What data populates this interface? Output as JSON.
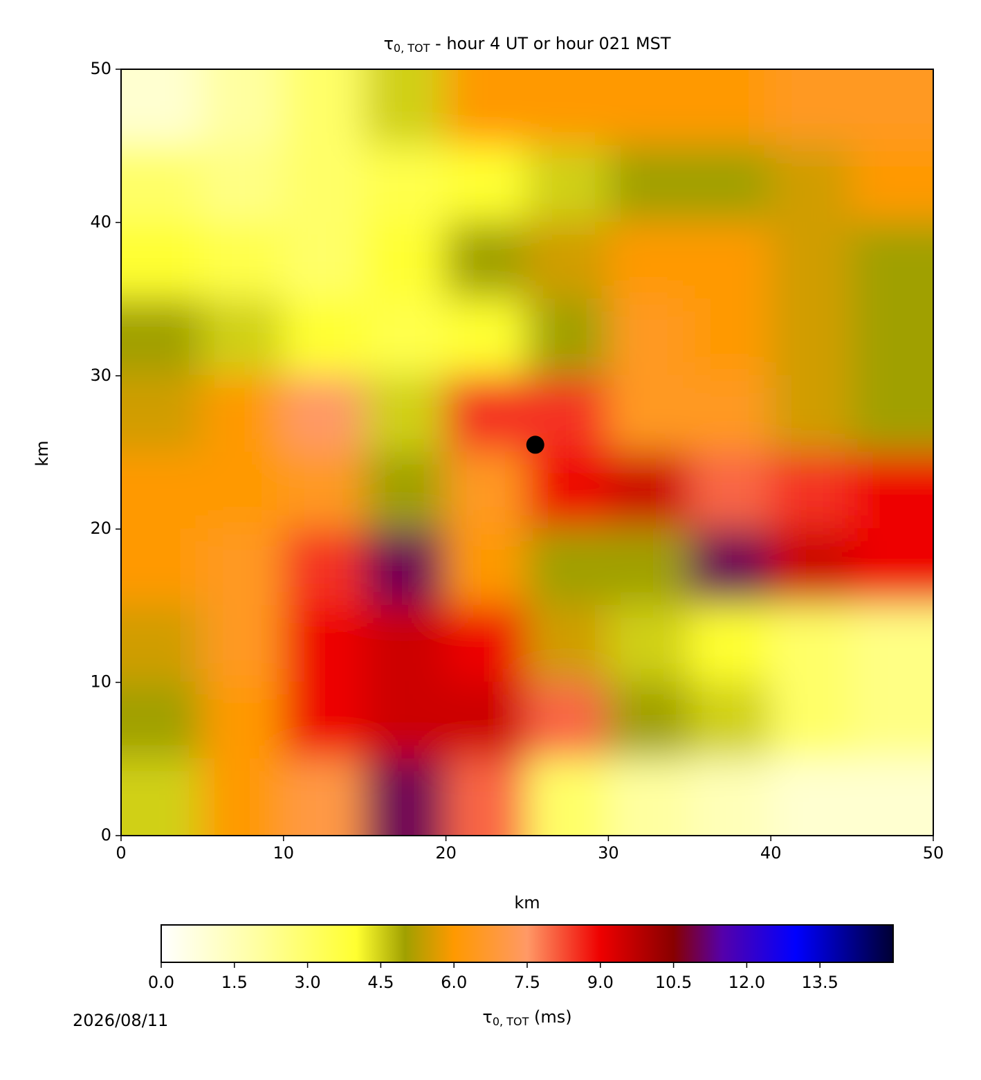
{
  "chart_data": {
    "type": "contourf",
    "title_symbol": "τ",
    "title_subscript": "0, TOT",
    "title_rest": " - hour 4 UT or hour 021 MST",
    "xlabel": "km",
    "ylabel": "km",
    "x": [
      2.5,
      7.5,
      12.5,
      17.5,
      22.5,
      27.5,
      32.5,
      37.5,
      42.5,
      47.5
    ],
    "y": [
      47.5,
      42.5,
      37.5,
      32.5,
      27.5,
      22.5,
      17.5,
      12.5,
      7.5,
      2.5
    ],
    "z": [
      [
        1,
        2,
        3,
        4.5,
        6,
        6,
        6,
        6,
        6.5,
        6.5
      ],
      [
        3,
        2.5,
        3,
        3.5,
        4,
        4.5,
        5,
        5,
        5.5,
        6
      ],
      [
        4,
        3.5,
        3,
        4,
        5,
        5.5,
        6,
        6,
        5.5,
        5
      ],
      [
        5,
        4.5,
        4,
        3.5,
        4,
        5,
        6.5,
        6,
        5.5,
        5
      ],
      [
        5.5,
        6,
        7.5,
        4.5,
        8.5,
        8.5,
        6.5,
        6.5,
        5.5,
        5
      ],
      [
        6,
        6,
        6.5,
        5,
        6.5,
        9,
        9.5,
        8,
        8.5,
        9
      ],
      [
        6,
        6.5,
        8.5,
        11,
        6,
        5,
        5,
        11,
        9.5,
        9
      ],
      [
        5.5,
        6.5,
        9,
        9.5,
        9,
        5.5,
        4.5,
        4,
        3,
        2.5
      ],
      [
        5,
        6,
        9,
        9.5,
        9.5,
        8,
        5,
        4.5,
        3,
        2.5
      ],
      [
        4.5,
        6,
        7,
        11,
        8,
        3,
        2,
        1.5,
        1,
        1
      ]
    ],
    "xlim": [
      0,
      50
    ],
    "ylim": [
      0,
      50
    ],
    "xticks": [
      0,
      10,
      20,
      30,
      40,
      50
    ],
    "yticks": [
      0,
      10,
      20,
      30,
      40,
      50
    ],
    "marker": {
      "x": 25.5,
      "y": 25.5,
      "color": "#000000"
    },
    "colormap": [
      [
        0,
        "#ffffff"
      ],
      [
        2,
        "#ffffa0"
      ],
      [
        4,
        "#ffff30"
      ],
      [
        5,
        "#a0a000"
      ],
      [
        6,
        "#ff9900"
      ],
      [
        7.5,
        "#ff9966"
      ],
      [
        9,
        "#ee0000"
      ],
      [
        10.5,
        "#880000"
      ],
      [
        11.5,
        "#5500aa"
      ],
      [
        13,
        "#0000ff"
      ],
      [
        15,
        "#000033"
      ]
    ],
    "clim": [
      0,
      15
    ],
    "colorbar_ticks": [
      {
        "value": 0,
        "label": "0.0"
      },
      1.5,
      {
        "value": 3,
        "label": "3.0"
      },
      4.5,
      {
        "value": 6,
        "label": "6.0"
      },
      7.5,
      {
        "value": 9,
        "label": "9.0"
      },
      10.5,
      {
        "value": 12,
        "label": "12.0"
      },
      13.5
    ],
    "colorbar_unit": " (ms)",
    "date": "2026/08/11"
  }
}
